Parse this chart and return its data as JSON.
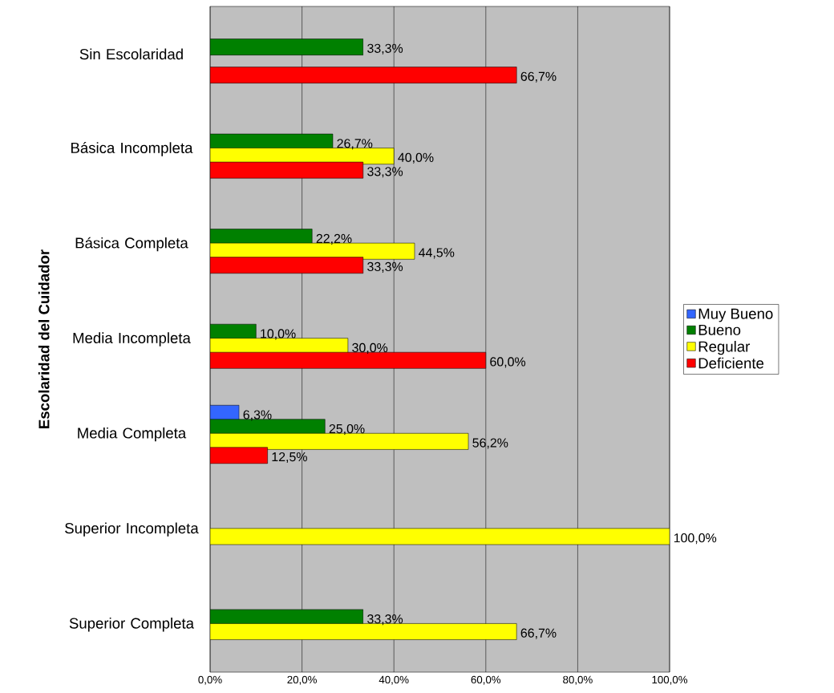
{
  "chart_data": {
    "type": "bar",
    "orientation": "horizontal",
    "ylabel": "Escolaridad del Cuidador",
    "categories": [
      "Sin Escolaridad",
      "Básica Incompleta",
      "Básica Completa",
      "Media Incompleta",
      "Media Completa",
      "Superior Incompleta",
      "Superior Completa"
    ],
    "series": [
      {
        "name": "Muy Bueno",
        "color": "#3366ff",
        "values": [
          null,
          null,
          null,
          null,
          6.3,
          null,
          null
        ],
        "value_labels": [
          null,
          null,
          null,
          null,
          "6,3%",
          null,
          null
        ]
      },
      {
        "name": "Bueno",
        "color": "#008000",
        "values": [
          33.3,
          26.7,
          22.2,
          10.0,
          25.0,
          null,
          33.3
        ],
        "value_labels": [
          "33,3%",
          "26,7%",
          "22,2%",
          "10,0%",
          "25,0%",
          null,
          "33,3%"
        ]
      },
      {
        "name": "Regular",
        "color": "#ffff00",
        "values": [
          null,
          40.0,
          44.5,
          30.0,
          56.2,
          100.0,
          66.7
        ],
        "value_labels": [
          null,
          "40,0%",
          "44,5%",
          "30,0%",
          "56,2%",
          "100,0%",
          "66,7%"
        ]
      },
      {
        "name": "Deficiente",
        "color": "#ff0000",
        "values": [
          66.7,
          33.3,
          33.3,
          60.0,
          12.5,
          null,
          null
        ],
        "value_labels": [
          "66,7%",
          "33,3%",
          "33,3%",
          "60,0%",
          "12,5%",
          null,
          null
        ]
      }
    ],
    "xlim": [
      0,
      100
    ],
    "xticks": [
      {
        "value": 0,
        "label": "0,0%"
      },
      {
        "value": 20,
        "label": "20,0%"
      },
      {
        "value": 40,
        "label": "40,0%"
      },
      {
        "value": 60,
        "label": "60,0%"
      },
      {
        "value": 80,
        "label": "80,0%"
      },
      {
        "value": 100,
        "label": "100,0%"
      }
    ],
    "grid": "x",
    "legend": "right"
  }
}
